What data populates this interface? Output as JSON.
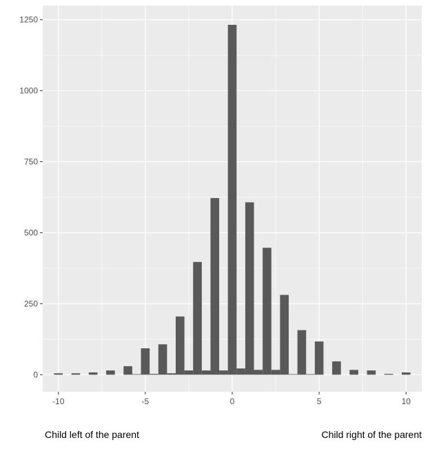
{
  "chart_data": {
    "type": "bar",
    "title": "",
    "xlabel": "",
    "ylabel": "",
    "xlim": [
      -10.9,
      10.9
    ],
    "ylim": [
      -60,
      1300
    ],
    "x_ticks": [
      -10,
      -5,
      0,
      5,
      10
    ],
    "x_tick_labels": [
      "-10",
      "-5",
      "0",
      "5",
      "10"
    ],
    "y_ticks": [
      0,
      250,
      500,
      750,
      1000,
      1250
    ],
    "y_tick_labels": [
      "0",
      "250",
      "500",
      "750",
      "1000",
      "1250"
    ],
    "grid": true,
    "legend": "none",
    "bar_width": 0.5,
    "x": [
      -10,
      -9,
      -8,
      -7,
      -6,
      -5.5,
      -5,
      -4.5,
      -4,
      -3.5,
      -3,
      -2.5,
      -2,
      -1.5,
      -1,
      -0.5,
      0,
      0.5,
      1,
      1.5,
      2,
      2.5,
      3,
      3.5,
      4,
      4.5,
      5,
      6,
      7,
      8,
      9,
      10
    ],
    "values": [
      5,
      5,
      8,
      15,
      30,
      2,
      93,
      3,
      107,
      5,
      205,
      15,
      397,
      15,
      622,
      15,
      1232,
      22,
      607,
      17,
      447,
      17,
      281,
      2,
      157,
      2,
      117,
      47,
      17,
      15,
      3,
      8
    ]
  },
  "captions": {
    "left": "Child left of the parent",
    "right": "Child right of the parent"
  },
  "colors": {
    "panel_background": "#ebebeb",
    "grid_major": "#ffffff",
    "bar_fill": "#595959",
    "tick_text": "#4d4d4d",
    "tick_mark": "#333333"
  }
}
